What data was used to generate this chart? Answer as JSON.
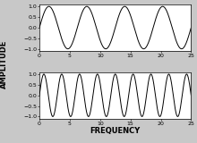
{
  "x_max": 25,
  "x_ticks": [
    0,
    5,
    10,
    15,
    20,
    25
  ],
  "freq1": 4,
  "freq2": 8.5,
  "amplitude": 1,
  "bg_color": "#ffffff",
  "line_color": "#000000",
  "fig_bg": "#c8c8c8",
  "ylabel": "AMPLITUDE",
  "xlabel": "FREQUENCY",
  "ylabel_fontsize": 6,
  "xlabel_fontsize": 6,
  "tick_fontsize": 4.5,
  "y_tick_step": 0.5,
  "ylim_low": -1.1,
  "ylim_high": 1.1,
  "linewidth": 0.7
}
